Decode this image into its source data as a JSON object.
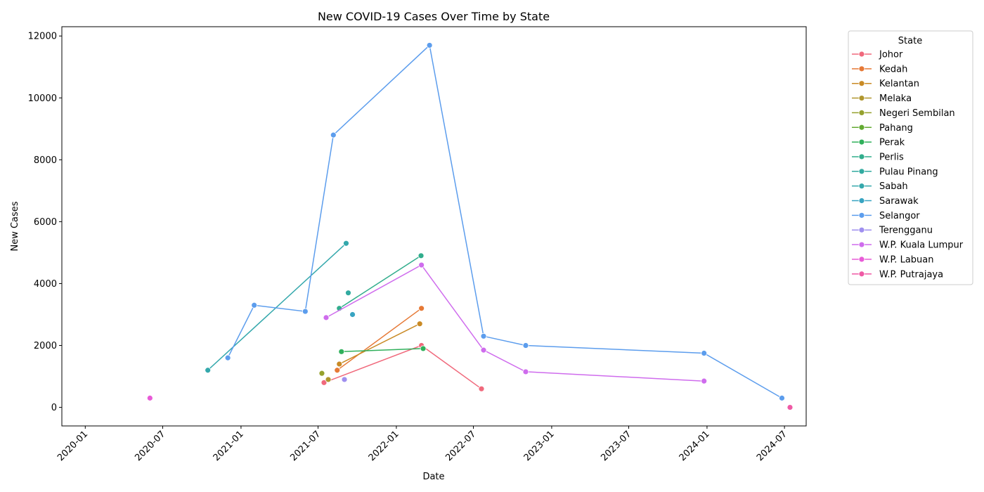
{
  "chart_data": {
    "type": "line",
    "title": "New COVID-19 Cases Over Time by State",
    "xlabel": "Date",
    "ylabel": "New Cases",
    "xlim": [
      "2019-11-07",
      "2024-08-21"
    ],
    "ylim": [
      -600,
      12300
    ],
    "x_ticks": [
      "2020-01",
      "2020-07",
      "2021-01",
      "2021-07",
      "2022-01",
      "2022-07",
      "2023-01",
      "2023-07",
      "2024-01",
      "2024-07"
    ],
    "y_ticks": [
      0,
      2000,
      4000,
      6000,
      8000,
      10000,
      12000
    ],
    "grid": false,
    "legend": {
      "title": "State",
      "placement": "outside-right-top",
      "entries": [
        "Johor",
        "Kedah",
        "Kelantan",
        "Melaka",
        "Negeri Sembilan",
        "Pahang",
        "Perak",
        "Perlis",
        "Pulau Pinang",
        "Sabah",
        "Sarawak",
        "Selangor",
        "Terengganu",
        "W.P. Kuala Lumpur",
        "W.P. Labuan",
        "W.P. Putrajaya"
      ]
    },
    "series": [
      {
        "name": "Johor",
        "color": "#f0697c",
        "points": [
          [
            "2021-07-15",
            800
          ],
          [
            "2022-03-01",
            2000
          ],
          [
            "2022-07-20",
            600
          ]
        ]
      },
      {
        "name": "Kedah",
        "color": "#e67936",
        "points": [
          [
            "2021-08-15",
            1200
          ],
          [
            "2022-03-01",
            3200
          ]
        ]
      },
      {
        "name": "Kelantan",
        "color": "#c98a25",
        "points": [
          [
            "2021-08-20",
            1400
          ],
          [
            "2022-02-25",
            2700
          ]
        ]
      },
      {
        "name": "Melaka",
        "color": "#b0962e",
        "points": [
          [
            "2021-07-25",
            900
          ]
        ]
      },
      {
        "name": "Negeri Sembilan",
        "color": "#95a12e",
        "points": [
          [
            "2021-07-10",
            1100
          ]
        ]
      },
      {
        "name": "Pahang",
        "color": "#63aa32",
        "points": [
          [
            "2021-09-01",
            900
          ]
        ]
      },
      {
        "name": "Perak",
        "color": "#30b05b",
        "points": [
          [
            "2021-08-25",
            1800
          ],
          [
            "2022-03-05",
            1900
          ]
        ]
      },
      {
        "name": "Perlis",
        "color": "#31ad8c",
        "points": [
          [
            "2021-08-20",
            3200
          ],
          [
            "2022-02-28",
            4900
          ]
        ]
      },
      {
        "name": "Pulau Pinang",
        "color": "#32aaa0",
        "points": [
          [
            "2021-09-10",
            3700
          ]
        ]
      },
      {
        "name": "Sabah",
        "color": "#34a8ac",
        "points": [
          [
            "2020-10-15",
            1200
          ],
          [
            "2021-09-05",
            5300
          ]
        ]
      },
      {
        "name": "Sarawak",
        "color": "#38a4c2",
        "points": [
          [
            "2021-09-20",
            3000
          ]
        ]
      },
      {
        "name": "Selangor",
        "color": "#5c9ded",
        "points": [
          [
            "2020-12-01",
            1600
          ],
          [
            "2021-02-01",
            3300
          ],
          [
            "2021-06-01",
            3100
          ],
          [
            "2021-08-06",
            8800
          ],
          [
            "2022-03-20",
            11700
          ],
          [
            "2022-07-25",
            2300
          ],
          [
            "2022-11-01",
            2000
          ],
          [
            "2023-12-25",
            1750
          ],
          [
            "2024-06-25",
            300
          ]
        ]
      },
      {
        "name": "Terengganu",
        "color": "#9f8fef",
        "points": [
          [
            "2021-09-01",
            900
          ]
        ]
      },
      {
        "name": "W.P. Kuala Lumpur",
        "color": "#cf6ced",
        "points": [
          [
            "2021-07-20",
            2900
          ],
          [
            "2022-03-01",
            4600
          ],
          [
            "2022-07-25",
            1850
          ],
          [
            "2022-11-01",
            1150
          ],
          [
            "2023-12-25",
            850
          ]
        ]
      },
      {
        "name": "W.P. Labuan",
        "color": "#e85bd7",
        "points": [
          [
            "2020-06-01",
            300
          ]
        ]
      },
      {
        "name": "W.P. Putrajaya",
        "color": "#ef5aa5",
        "points": [
          [
            "2024-07-14",
            0
          ]
        ]
      }
    ]
  }
}
